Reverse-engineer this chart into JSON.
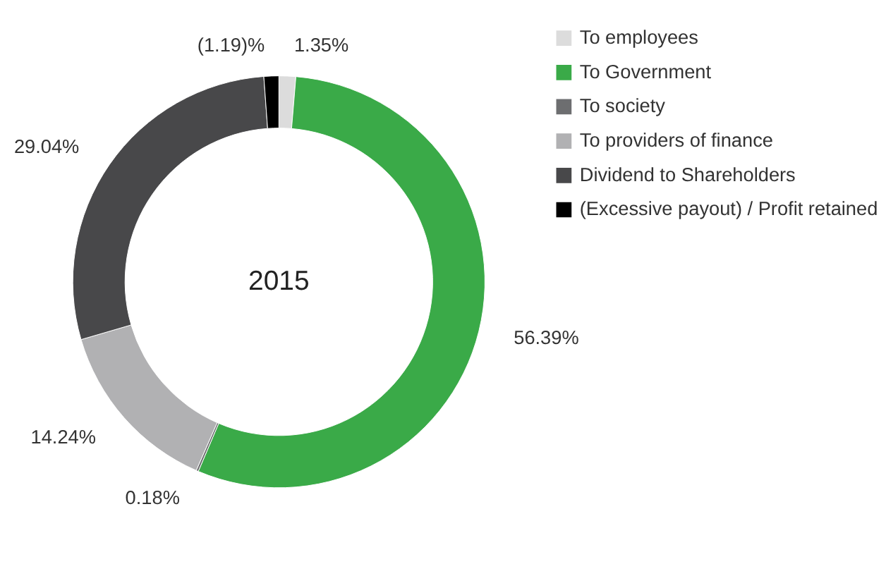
{
  "chart_data": {
    "type": "donut",
    "title": "2015",
    "categories": [
      "To employees",
      "To Government",
      "To society",
      "To providers of finance",
      "Dividend to Shareholders",
      "(Excessive payout) / Profit retained"
    ],
    "values": [
      1.35,
      56.39,
      0.18,
      14.24,
      29.04,
      1.19
    ],
    "value_labels": [
      "1.35%",
      "56.39%",
      "0.18%",
      "14.24%",
      "29.04%",
      "(1.19)%"
    ],
    "colors": [
      "#dcdcdc",
      "#3aaa48",
      "#6d6e70",
      "#b1b1b3",
      "#48484a",
      "#000000"
    ],
    "legend": "right"
  }
}
